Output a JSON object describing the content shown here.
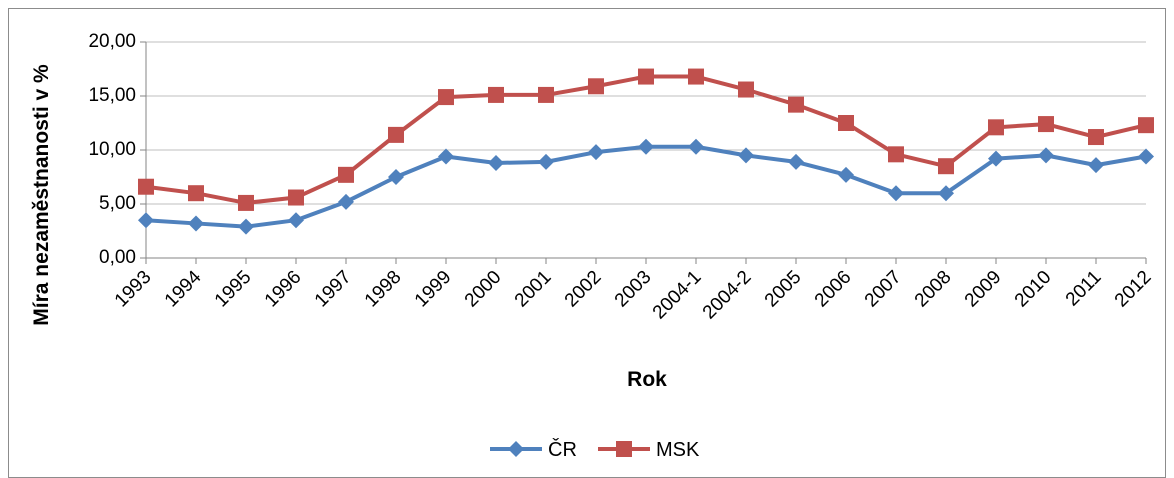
{
  "chart_data": {
    "type": "line",
    "categories": [
      "1993",
      "1994",
      "1995",
      "1996",
      "1997",
      "1998",
      "1999",
      "2000",
      "2001",
      "2002",
      "2003",
      "2004-1",
      "2004-2",
      "2005",
      "2006",
      "2007",
      "2008",
      "2009",
      "2010",
      "2011",
      "2012"
    ],
    "series": [
      {
        "name": "ČR",
        "color": "#4f81bd",
        "marker": "diamond",
        "values": [
          3.5,
          3.2,
          2.9,
          3.5,
          5.2,
          7.5,
          9.4,
          8.8,
          8.9,
          9.8,
          10.3,
          10.3,
          9.5,
          8.9,
          7.7,
          6.0,
          6.0,
          9.2,
          9.5,
          8.6,
          9.4
        ]
      },
      {
        "name": "MSK",
        "color": "#c0504d",
        "marker": "square",
        "values": [
          6.6,
          6.0,
          5.1,
          5.6,
          7.7,
          11.4,
          14.9,
          15.1,
          15.1,
          15.9,
          16.8,
          16.8,
          15.6,
          14.2,
          12.5,
          9.6,
          8.5,
          12.1,
          12.4,
          11.2,
          12.3
        ]
      }
    ],
    "xlabel": "Rok",
    "ylabel": "Míra nezaměstnanosti v %",
    "ylim": [
      0,
      20
    ],
    "yticks": [
      "0,00",
      "5,00",
      "10,00",
      "15,00",
      "20,00"
    ],
    "grid": true,
    "legend": "bottom"
  }
}
